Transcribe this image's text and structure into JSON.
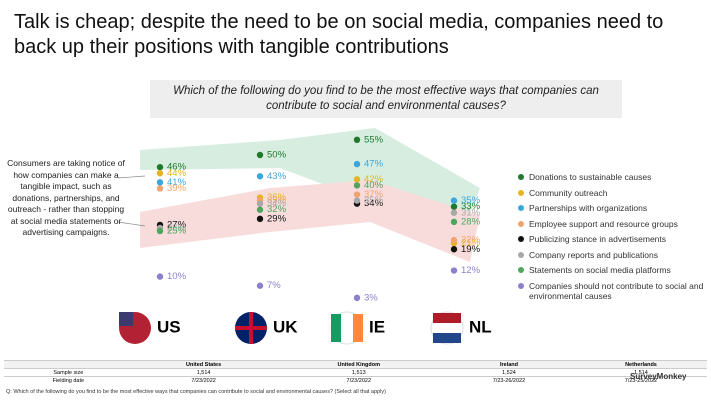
{
  "chart_data": {
    "type": "dot",
    "title": "Talk is cheap; despite the need to be on social media, companies need to back up their positions with tangible contributions",
    "subtitle": "Which of the following do you find to be the most effective ways that companies can contribute to social and environmental causes?",
    "annotation": "Consumers are taking notice of how companies can make a tangible impact, such as donations, partnerships, and outreach - rather than stopping at social media statements or advertising campaigns.",
    "categories": [
      "US",
      "UK",
      "IE",
      "NL"
    ],
    "series": [
      {
        "name": "Donations to sustainable causes",
        "color": "#1f7a2e",
        "values": [
          46,
          50,
          55,
          33
        ],
        "value_labels": [
          "46%",
          "50%",
          "55%",
          "33%"
        ]
      },
      {
        "name": "Community outreach",
        "color": "#e6b422",
        "values": [
          44,
          36,
          42,
          21
        ],
        "value_labels": [
          "44%",
          "36%",
          "42%",
          "21%"
        ]
      },
      {
        "name": "Partnerships with organizations",
        "color": "#3aa6de",
        "values": [
          41,
          43,
          47,
          35
        ],
        "value_labels": [
          "41%",
          "43%",
          "47%",
          "35%"
        ]
      },
      {
        "name": "Employee support and resource groups",
        "color": "#f2a46e",
        "values": [
          39,
          35,
          37,
          22
        ],
        "value_labels": [
          "39%",
          "35%",
          "37%",
          "22%"
        ]
      },
      {
        "name": "Publicizing stance in advertisements",
        "color": "#111111",
        "values": [
          27,
          29,
          34,
          19
        ],
        "value_labels": [
          "27%",
          "29%",
          "34%",
          "19%"
        ]
      },
      {
        "name": "Company reports and publications",
        "color": "#a8a8a8",
        "values": [
          26,
          34,
          35,
          31
        ],
        "value_labels": [
          "26%",
          "34%",
          "35%",
          "31%"
        ]
      },
      {
        "name": "Statements on social media platforms",
        "color": "#4ca65e",
        "values": [
          25,
          32,
          40,
          28
        ],
        "value_labels": [
          "25%",
          "32%",
          "40%",
          "28%"
        ]
      },
      {
        "name": "Companies should not contribute to social and environmental causes",
        "color": "#8c7fcb",
        "values": [
          10,
          7,
          3,
          12
        ],
        "value_labels": [
          "10%",
          "7%",
          "3%",
          "12%"
        ]
      }
    ]
  },
  "table": {
    "header": [
      "",
      "United States",
      "United Kingdom",
      "Ireland",
      "Netherlands"
    ],
    "rows": [
      [
        "Sample size",
        "1,514",
        "1,513",
        "1,524",
        "1,514"
      ],
      [
        "Fielding date",
        "7/23/2022",
        "7/23/2022",
        "7/23-26/2022",
        "7/23-25/2022"
      ]
    ]
  },
  "footnote": "Q: Which of the following do you find to be the most effective ways that companies can contribute to social and environmental causes? (Select all that apply)",
  "logo": "SurveyMonkey"
}
